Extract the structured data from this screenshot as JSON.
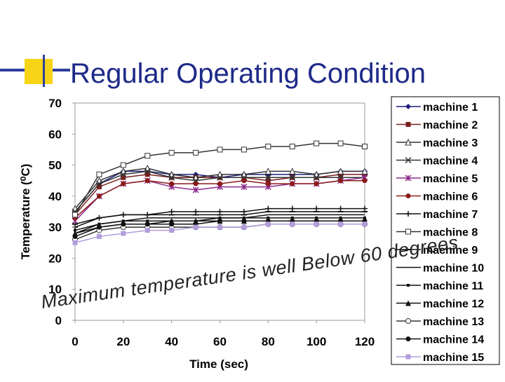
{
  "chart_data": {
    "type": "line",
    "title": "Regular Operating Condition",
    "x_label": "Time (sec)",
    "y_label": "Temperature (⁰C)",
    "annotation": "Maximum temperature is well Below 60 degrees",
    "x": [
      0,
      10,
      20,
      30,
      40,
      50,
      60,
      70,
      80,
      90,
      100,
      110,
      120
    ],
    "xlim": [
      0,
      120
    ],
    "xticks": [
      0,
      20,
      40,
      60,
      80,
      100,
      120
    ],
    "ylim": [
      0,
      70
    ],
    "yticks": [
      0,
      10,
      20,
      30,
      40,
      50,
      60,
      70
    ],
    "grid": false,
    "legend": "right",
    "series": [
      {
        "name": "machine 1",
        "color": "#1f1f7a",
        "marker": "diamond",
        "values": [
          35,
          44,
          48,
          48,
          47,
          47,
          46,
          47,
          47,
          47,
          47,
          48,
          48
        ]
      },
      {
        "name": "machine 2",
        "color": "#7a1f1f",
        "marker": "square",
        "values": [
          34,
          43,
          46,
          47,
          46,
          46,
          46,
          46,
          45,
          46,
          46,
          47,
          47
        ]
      },
      {
        "name": "machine 3",
        "color": "#333333",
        "marker": "triangle-open",
        "values": [
          36,
          45,
          48,
          49,
          47,
          46,
          47,
          47,
          48,
          48,
          47,
          48,
          48
        ]
      },
      {
        "name": "machine 4",
        "color": "#333333",
        "marker": "x",
        "values": [
          35,
          44,
          47,
          48,
          46,
          45,
          46,
          46,
          46,
          46,
          46,
          46,
          46
        ]
      },
      {
        "name": "machine 5",
        "color": "#8b2a8b",
        "marker": "asterisk",
        "values": [
          32,
          40,
          44,
          45,
          43,
          42,
          43,
          43,
          43,
          44,
          44,
          45,
          46
        ]
      },
      {
        "name": "machine 6",
        "color": "#8b1a1a",
        "marker": "circle",
        "values": [
          33,
          40,
          44,
          45,
          44,
          44,
          44,
          45,
          44,
          44,
          44,
          45,
          45
        ]
      },
      {
        "name": "machine 7",
        "color": "#111111",
        "marker": "plus",
        "values": [
          30,
          33,
          34,
          34,
          35,
          35,
          35,
          35,
          36,
          36,
          36,
          36,
          36
        ]
      },
      {
        "name": "machine 8",
        "color": "#333333",
        "marker": "square-open",
        "values": [
          34,
          47,
          50,
          53,
          54,
          54,
          55,
          55,
          56,
          56,
          57,
          57,
          56
        ]
      },
      {
        "name": "machine 9",
        "color": "#111111",
        "marker": "dash",
        "values": [
          31,
          33,
          34,
          34,
          34,
          34,
          34,
          34,
          35,
          35,
          35,
          35,
          35
        ]
      },
      {
        "name": "machine 10",
        "color": "#111111",
        "marker": "none",
        "values": [
          28,
          31,
          32,
          33,
          33,
          33,
          33,
          33,
          34,
          34,
          34,
          34,
          34
        ]
      },
      {
        "name": "machine 11",
        "color": "#111111",
        "marker": "small-square",
        "values": [
          29,
          31,
          32,
          32,
          32,
          32,
          33,
          33,
          33,
          33,
          33,
          33,
          33
        ]
      },
      {
        "name": "machine 12",
        "color": "#111111",
        "marker": "triangle",
        "values": [
          28,
          30,
          31,
          31,
          32,
          32,
          32,
          32,
          32,
          32,
          32,
          32,
          32
        ]
      },
      {
        "name": "machine 13",
        "color": "#333333",
        "marker": "circle-open",
        "values": [
          26,
          29,
          30,
          30,
          30,
          30,
          30,
          30,
          31,
          31,
          31,
          31,
          31
        ]
      },
      {
        "name": "machine 14",
        "color": "#111111",
        "marker": "circle",
        "values": [
          27,
          30,
          31,
          31,
          31,
          31,
          32,
          32,
          32,
          32,
          32,
          32,
          32
        ]
      },
      {
        "name": "machine 15",
        "color": "#b39ddb",
        "marker": "square",
        "values": [
          25,
          27,
          28,
          29,
          29,
          30,
          30,
          30,
          31,
          31,
          31,
          31,
          31
        ]
      }
    ]
  }
}
